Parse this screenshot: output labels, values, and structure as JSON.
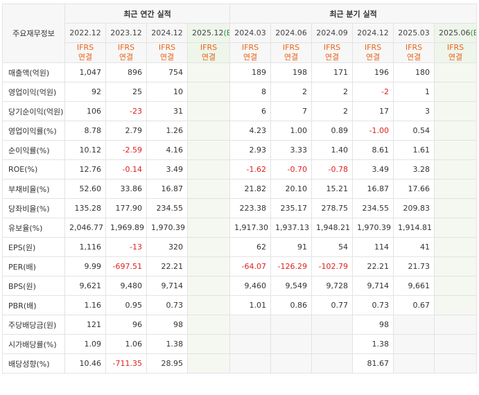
{
  "header": {
    "row_label": "주요재무정보",
    "annual_group": "최근 연간 실적",
    "quarter_group": "최근 분기 실적",
    "annual_periods": [
      "2022.12",
      "2023.12",
      "2024.12",
      "2025.12"
    ],
    "annual_est_marker": "(E)",
    "quarter_periods": [
      "2024.03",
      "2024.06",
      "2024.09",
      "2024.12",
      "2025.03",
      "2025.06"
    ],
    "quarter_est_marker": "(E)",
    "ifrs_line1": "IFRS",
    "ifrs_line2": "연결"
  },
  "rows": [
    {
      "label": "매출액(억원)",
      "annual": [
        "1,047",
        "896",
        "754",
        ""
      ],
      "quarter": [
        "189",
        "198",
        "171",
        "196",
        "180",
        ""
      ]
    },
    {
      "label": "영업이익(억원)",
      "annual": [
        "92",
        "25",
        "10",
        ""
      ],
      "quarter": [
        "8",
        "2",
        "2",
        "-2",
        "1",
        ""
      ]
    },
    {
      "label": "당기순이익(억원)",
      "annual": [
        "106",
        "-23",
        "31",
        ""
      ],
      "quarter": [
        "6",
        "7",
        "2",
        "17",
        "3",
        ""
      ]
    },
    {
      "label": "영업이익률(%)",
      "annual": [
        "8.78",
        "2.79",
        "1.26",
        ""
      ],
      "quarter": [
        "4.23",
        "1.00",
        "0.89",
        "-1.00",
        "0.54",
        ""
      ]
    },
    {
      "label": "순이익률(%)",
      "annual": [
        "10.12",
        "-2.59",
        "4.16",
        ""
      ],
      "quarter": [
        "2.93",
        "3.33",
        "1.40",
        "8.61",
        "1.61",
        ""
      ]
    },
    {
      "label": "ROE(%)",
      "annual": [
        "12.76",
        "-0.14",
        "3.49",
        ""
      ],
      "quarter": [
        "-1.62",
        "-0.70",
        "-0.78",
        "3.49",
        "3.28",
        ""
      ]
    },
    {
      "label": "부채비율(%)",
      "annual": [
        "52.60",
        "33.86",
        "16.87",
        ""
      ],
      "quarter": [
        "21.82",
        "20.10",
        "15.21",
        "16.87",
        "17.66",
        ""
      ]
    },
    {
      "label": "당좌비율(%)",
      "annual": [
        "135.28",
        "177.90",
        "234.55",
        ""
      ],
      "quarter": [
        "223.38",
        "235.17",
        "278.75",
        "234.55",
        "209.83",
        ""
      ]
    },
    {
      "label": "유보율(%)",
      "annual": [
        "2,046.77",
        "1,969.89",
        "1,970.39",
        ""
      ],
      "quarter": [
        "1,917.30",
        "1,937.13",
        "1,948.21",
        "1,970.39",
        "1,914.81",
        ""
      ]
    },
    {
      "label": "EPS(원)",
      "annual": [
        "1,116",
        "-13",
        "320",
        ""
      ],
      "quarter": [
        "62",
        "91",
        "54",
        "114",
        "41",
        ""
      ]
    },
    {
      "label": "PER(배)",
      "annual": [
        "9.99",
        "-697.51",
        "22.21",
        ""
      ],
      "quarter": [
        "-64.07",
        "-126.29",
        "-102.79",
        "22.21",
        "21.73",
        ""
      ]
    },
    {
      "label": "BPS(원)",
      "annual": [
        "9,621",
        "9,480",
        "9,714",
        ""
      ],
      "quarter": [
        "9,460",
        "9,549",
        "9,728",
        "9,714",
        "9,661",
        ""
      ]
    },
    {
      "label": "PBR(배)",
      "annual": [
        "1.16",
        "0.95",
        "0.73",
        ""
      ],
      "quarter": [
        "1.01",
        "0.86",
        "0.77",
        "0.73",
        "0.67",
        ""
      ]
    },
    {
      "label": "주당배당금(원)",
      "annual": [
        "121",
        "96",
        "98",
        ""
      ],
      "quarter": [
        "",
        "",
        "",
        "98",
        "",
        ""
      ]
    },
    {
      "label": "시가배당률(%)",
      "annual": [
        "1.09",
        "1.06",
        "1.38",
        ""
      ],
      "quarter": [
        "",
        "",
        "",
        "1.38",
        "",
        ""
      ]
    },
    {
      "label": "배당성향(%)",
      "annual": [
        "10.46",
        "-711.35",
        "28.95",
        ""
      ],
      "quarter": [
        "",
        "",
        "",
        "81.67",
        "",
        ""
      ]
    }
  ]
}
